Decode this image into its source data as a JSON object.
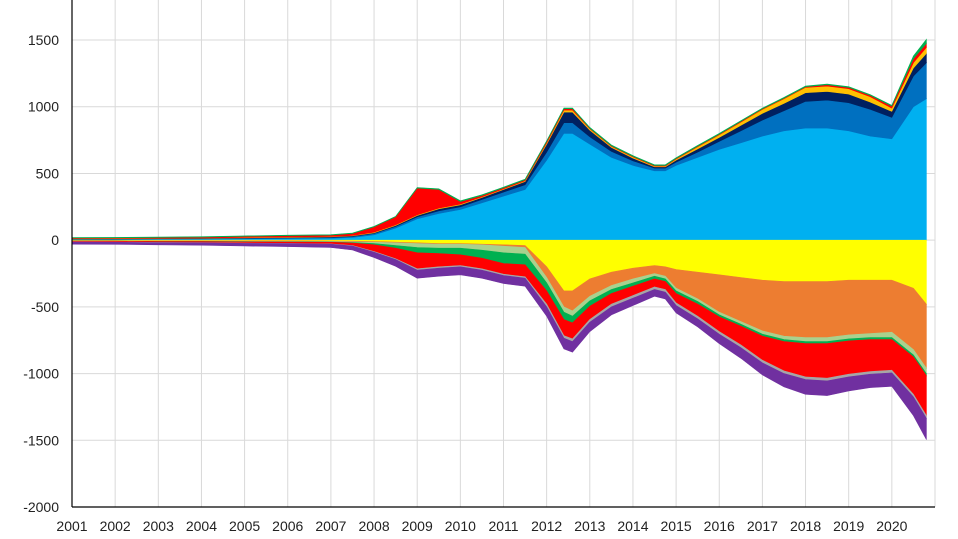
{
  "chart_data": {
    "type": "area",
    "stacked": true,
    "title": "",
    "xlabel": "",
    "ylabel": "",
    "legend": "none",
    "grid": true,
    "xlim": [
      2001,
      2021
    ],
    "ylim": [
      -2000,
      1800
    ],
    "x_ticks": [
      2001,
      2002,
      2003,
      2004,
      2005,
      2006,
      2007,
      2008,
      2009,
      2010,
      2011,
      2012,
      2013,
      2014,
      2015,
      2016,
      2017,
      2018,
      2019,
      2020
    ],
    "x_tick_labels": [
      "2001",
      "2002",
      "2003",
      "2004",
      "2005",
      "2006",
      "2007",
      "2008",
      "2009",
      "2010",
      "2011",
      "2012",
      "2013",
      "2014",
      "2015",
      "2016",
      "2017",
      "2018",
      "2019",
      "2020"
    ],
    "y_ticks": [
      1500,
      1000,
      500,
      0,
      -500,
      -1000,
      -1500,
      -2000
    ],
    "y_tick_labels": [
      "1500",
      "1000",
      "500",
      "0",
      "-500",
      "-1000",
      "-1500",
      "-2000"
    ],
    "x": [
      2001,
      2002,
      2003,
      2004,
      2005,
      2006,
      2007,
      2007.5,
      2008,
      2008.5,
      2009,
      2009.5,
      2010,
      2010.5,
      2011,
      2011.5,
      2012,
      2012.4,
      2012.6,
      2013,
      2013.5,
      2014,
      2014.5,
      2014.75,
      2015,
      2015.5,
      2016,
      2016.5,
      2017,
      2017.5,
      2018,
      2018.5,
      2019,
      2019.5,
      2020,
      2020.5,
      2020.8
    ],
    "positive_series": [
      {
        "color": "#00b0f0",
        "values": [
          5,
          6,
          7,
          8,
          10,
          12,
          15,
          20,
          40,
          90,
          160,
          200,
          230,
          280,
          330,
          380,
          600,
          800,
          800,
          720,
          620,
          560,
          520,
          520,
          560,
          620,
          680,
          730,
          780,
          820,
          840,
          840,
          820,
          780,
          760,
          1000,
          1060
        ]
      },
      {
        "color": "#0070c0",
        "values": [
          3,
          3,
          4,
          4,
          5,
          6,
          6,
          8,
          10,
          12,
          15,
          20,
          20,
          25,
          30,
          35,
          60,
          80,
          80,
          55,
          45,
          35,
          20,
          20,
          25,
          40,
          60,
          90,
          120,
          150,
          200,
          210,
          210,
          200,
          160,
          230,
          270
        ]
      },
      {
        "color": "#002060",
        "values": [
          2,
          2,
          2,
          3,
          3,
          3,
          4,
          5,
          5,
          8,
          10,
          15,
          15,
          15,
          20,
          25,
          60,
          80,
          80,
          50,
          30,
          20,
          10,
          10,
          15,
          25,
          30,
          40,
          50,
          55,
          65,
          65,
          65,
          55,
          45,
          60,
          70
        ]
      },
      {
        "color": "#ffc000",
        "values": [
          2,
          2,
          2,
          2,
          3,
          3,
          3,
          3,
          5,
          5,
          5,
          5,
          5,
          5,
          5,
          5,
          10,
          15,
          15,
          10,
          8,
          8,
          5,
          5,
          8,
          15,
          20,
          25,
          30,
          35,
          40,
          40,
          40,
          40,
          25,
          40,
          45
        ]
      },
      {
        "color": "#ff0000",
        "values": [
          5,
          5,
          5,
          6,
          8,
          10,
          10,
          15,
          40,
          60,
          200,
          140,
          20,
          10,
          8,
          8,
          10,
          10,
          10,
          5,
          5,
          5,
          5,
          5,
          5,
          5,
          5,
          5,
          5,
          5,
          5,
          10,
          10,
          10,
          15,
          30,
          30
        ]
      },
      {
        "color": "#00b050",
        "values": [
          3,
          3,
          3,
          3,
          3,
          3,
          3,
          3,
          3,
          3,
          5,
          5,
          5,
          5,
          5,
          5,
          5,
          5,
          5,
          5,
          5,
          5,
          5,
          5,
          5,
          5,
          5,
          5,
          5,
          5,
          5,
          5,
          5,
          5,
          5,
          20,
          30
        ]
      }
    ],
    "negative_series": [
      {
        "color": "#ffff00",
        "values": [
          -3,
          -3,
          -4,
          -4,
          -5,
          -5,
          -6,
          -8,
          -10,
          -15,
          -20,
          -25,
          -25,
          -30,
          -35,
          -40,
          -200,
          -380,
          -380,
          -290,
          -240,
          -210,
          -190,
          -200,
          -220,
          -240,
          -260,
          -280,
          -300,
          -310,
          -310,
          -310,
          -300,
          -300,
          -300,
          -360,
          -480
        ]
      },
      {
        "color": "#ed7d31",
        "values": [
          -2,
          -2,
          -3,
          -3,
          -3,
          -4,
          -5,
          -5,
          -5,
          -5,
          -5,
          -5,
          -5,
          -5,
          -10,
          -15,
          -80,
          -120,
          -150,
          -130,
          -100,
          -80,
          -60,
          -70,
          -140,
          -200,
          -280,
          -330,
          -380,
          -410,
          -420,
          -420,
          -410,
          -400,
          -390,
          -460,
          -480
        ]
      },
      {
        "color": "#a9d18e",
        "values": [
          -2,
          -2,
          -2,
          -2,
          -3,
          -3,
          -3,
          -5,
          -10,
          -20,
          -30,
          -30,
          -30,
          -40,
          -50,
          -50,
          -40,
          -40,
          -40,
          -35,
          -30,
          -30,
          -20,
          -20,
          -20,
          -20,
          -20,
          -20,
          -25,
          -25,
          -30,
          -30,
          -30,
          -30,
          -40,
          -40,
          -40
        ]
      },
      {
        "color": "#00b050",
        "values": [
          -1,
          -1,
          -1,
          -1,
          -2,
          -2,
          -2,
          -3,
          -10,
          -20,
          -40,
          -40,
          -50,
          -60,
          -80,
          -80,
          -60,
          -55,
          -50,
          -40,
          -30,
          -25,
          -20,
          -20,
          -20,
          -20,
          -15,
          -15,
          -15,
          -15,
          -15,
          -15,
          -15,
          -15,
          -15,
          -15,
          -15
        ]
      },
      {
        "color": "#ff0000",
        "values": [
          -5,
          -6,
          -7,
          -8,
          -9,
          -10,
          -12,
          -20,
          -50,
          -80,
          -120,
          -100,
          -80,
          -80,
          -80,
          -90,
          -100,
          -120,
          -120,
          -100,
          -80,
          -70,
          -60,
          -60,
          -70,
          -90,
          -110,
          -140,
          -180,
          -220,
          -250,
          -260,
          -250,
          -240,
          -230,
          -280,
          -300
        ]
      },
      {
        "color": "#a6a6a6",
        "values": [
          -2,
          -2,
          -2,
          -2,
          -2,
          -2,
          -2,
          -3,
          -5,
          -5,
          -10,
          -10,
          -10,
          -10,
          -10,
          -10,
          -20,
          -20,
          -20,
          -20,
          -20,
          -20,
          -20,
          -20,
          -20,
          -20,
          -20,
          -20,
          -20,
          -20,
          -20,
          -20,
          -20,
          -20,
          -20,
          -20,
          -20
        ]
      },
      {
        "color": "#7030a0",
        "values": [
          -15,
          -15,
          -16,
          -18,
          -20,
          -22,
          -25,
          -30,
          -40,
          -50,
          -60,
          -60,
          -60,
          -60,
          -60,
          -60,
          -70,
          -80,
          -80,
          -70,
          -60,
          -55,
          -50,
          -50,
          -55,
          -60,
          -70,
          -80,
          -90,
          -100,
          -110,
          -110,
          -105,
          -100,
          -100,
          -140,
          -160
        ]
      }
    ]
  }
}
